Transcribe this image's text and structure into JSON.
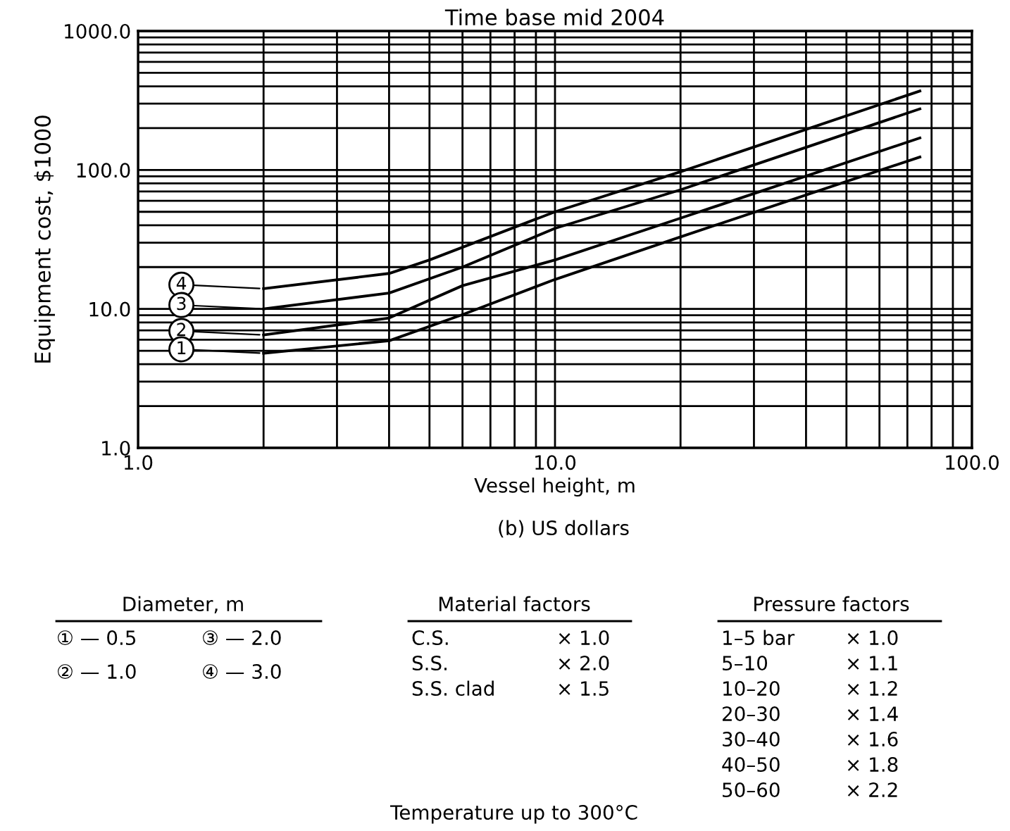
{
  "chart_data": {
    "type": "line",
    "title": "Time base mid 2004",
    "xlabel": "Vessel height, m",
    "ylabel": "Equipment cost, $1000",
    "log": "xy",
    "grid": true,
    "marker": "none",
    "line_style": "solid",
    "legend": "left",
    "xlim": [
      1,
      100
    ],
    "ylim": [
      1,
      1000
    ],
    "xticks": [
      {
        "value": 1,
        "label": "1.0"
      },
      {
        "value": 2,
        "label": null
      },
      {
        "value": 3,
        "label": null
      },
      {
        "value": 4,
        "label": null
      },
      {
        "value": 5,
        "label": null
      },
      {
        "value": 6,
        "label": null
      },
      {
        "value": 7,
        "label": null
      },
      {
        "value": 8,
        "label": null
      },
      {
        "value": 9,
        "label": null
      },
      {
        "value": 10,
        "label": "10.0"
      },
      {
        "value": 20,
        "label": null
      },
      {
        "value": 30,
        "label": null
      },
      {
        "value": 40,
        "label": null
      },
      {
        "value": 50,
        "label": null
      },
      {
        "value": 60,
        "label": null
      },
      {
        "value": 70,
        "label": null
      },
      {
        "value": 80,
        "label": null
      },
      {
        "value": 90,
        "label": null
      },
      {
        "value": 100,
        "label": "100.0"
      }
    ],
    "yticks": [
      {
        "value": 1,
        "label": "1.0"
      },
      {
        "value": 2,
        "label": null
      },
      {
        "value": 3,
        "label": null
      },
      {
        "value": 4,
        "label": null
      },
      {
        "value": 5,
        "label": null
      },
      {
        "value": 6,
        "label": null
      },
      {
        "value": 7,
        "label": null
      },
      {
        "value": 8,
        "label": null
      },
      {
        "value": 9,
        "label": null
      },
      {
        "value": 10,
        "label": "10.0"
      },
      {
        "value": 20,
        "label": null
      },
      {
        "value": 30,
        "label": null
      },
      {
        "value": 40,
        "label": null
      },
      {
        "value": 50,
        "label": null
      },
      {
        "value": 60,
        "label": null
      },
      {
        "value": 70,
        "label": null
      },
      {
        "value": 80,
        "label": null
      },
      {
        "value": 90,
        "label": null
      },
      {
        "value": 100,
        "label": "100.0"
      },
      {
        "value": 200,
        "label": null
      },
      {
        "value": 300,
        "label": null
      },
      {
        "value": 400,
        "label": null
      },
      {
        "value": 500,
        "label": null
      },
      {
        "value": 600,
        "label": null
      },
      {
        "value": 700,
        "label": null
      },
      {
        "value": 800,
        "label": null
      },
      {
        "value": 900,
        "label": null
      },
      {
        "value": 1000,
        "label": "1000.0"
      }
    ],
    "series": [
      {
        "name": "4",
        "color": "#000000",
        "x": [
          2,
          4,
          5,
          10,
          20,
          75
        ],
        "values": [
          14,
          18,
          22.5,
          50,
          97,
          370
        ]
      },
      {
        "name": "3",
        "color": "#000000",
        "x": [
          2,
          4,
          6,
          10,
          20,
          75
        ],
        "values": [
          10,
          13,
          20,
          38,
          72,
          275
        ]
      },
      {
        "name": "2",
        "color": "#000000",
        "x": [
          2,
          4,
          6,
          10,
          20,
          75
        ],
        "values": [
          6.5,
          8.6,
          14.7,
          22.5,
          45,
          170
        ]
      },
      {
        "name": "1",
        "color": "#000000",
        "x": [
          2,
          4,
          6,
          10,
          20,
          75
        ],
        "values": [
          4.8,
          5.9,
          9.1,
          16.3,
          33,
          124
        ]
      }
    ],
    "annotations": [
      "(b) US dollars",
      "Diameter, m",
      "① — 0.5",
      "③ — 2.0",
      "② — 1.0",
      "④ — 3.0",
      "Material factors",
      "C.S.",
      "× 1.0",
      "S.S.",
      "× 2.0",
      "S.S. clad",
      "× 1.5",
      "Pressure factors",
      "1–5 bar",
      "× 1.0",
      "5–10",
      "× 1.1",
      "10–20",
      "× 1.2",
      "20–30",
      "× 1.4",
      "30–40",
      "× 1.6",
      "40–50",
      "× 1.8",
      "50–60",
      "× 2.2",
      "Temperature up to 300°C"
    ]
  }
}
